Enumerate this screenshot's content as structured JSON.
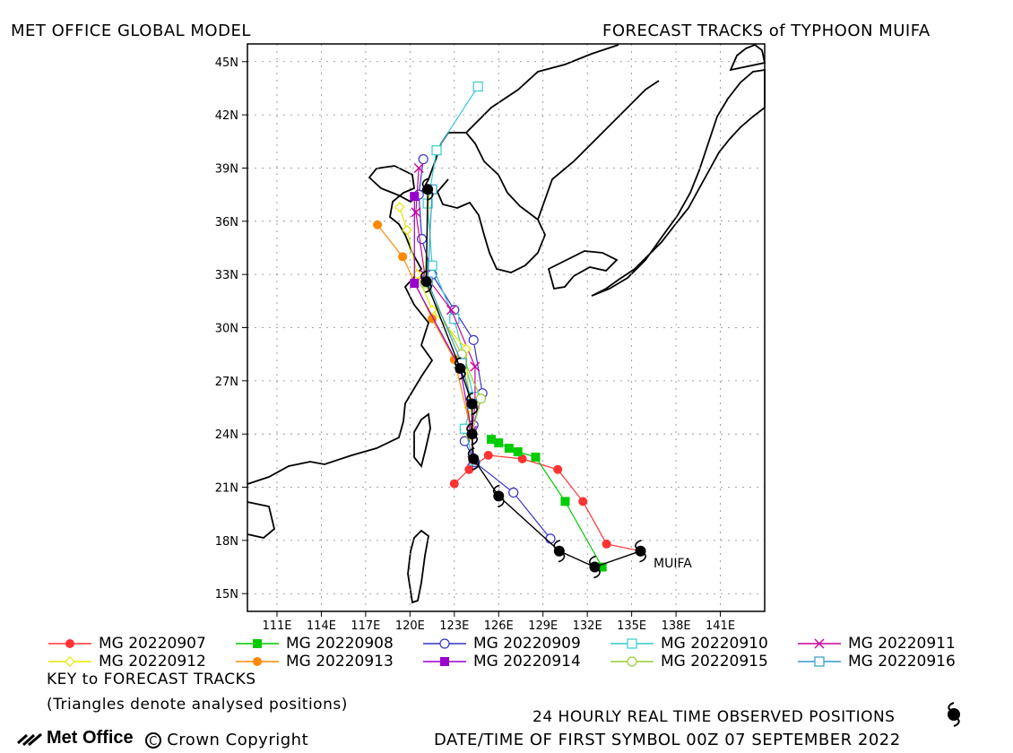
{
  "header": {
    "left_title": "MET OFFICE GLOBAL MODEL",
    "right_title": "FORECAST TRACKS of TYPHOON MUIFA"
  },
  "map": {
    "lat_labels": [
      "45N",
      "42N",
      "39N",
      "36N",
      "33N",
      "30N",
      "27N",
      "24N",
      "21N",
      "18N",
      "15N"
    ],
    "lon_labels": [
      "111E",
      "114E",
      "117E",
      "120E",
      "123E",
      "126E",
      "129E",
      "132E",
      "135E",
      "138E",
      "141E"
    ],
    "storm_label": "MUIFA",
    "land_color": "#ffffff",
    "coast_color": "#000000"
  },
  "legend": {
    "items": [
      {
        "label": "MG 20220907",
        "color": "#ff3333",
        "marker": "circle-filled"
      },
      {
        "label": "MG 20220908",
        "color": "#00cc00",
        "marker": "square-filled"
      },
      {
        "label": "MG 20220909",
        "color": "#3333cc",
        "marker": "circle-open"
      },
      {
        "label": "MG 20220910",
        "color": "#33cccc",
        "marker": "square-open"
      },
      {
        "label": "MG 20220911",
        "color": "#cc0099",
        "marker": "x"
      },
      {
        "label": "MG 20220912",
        "color": "#e6e600",
        "marker": "diamond-open"
      },
      {
        "label": "MG 20220913",
        "color": "#ff8800",
        "marker": "circle-filled"
      },
      {
        "label": "MG 20220914",
        "color": "#9900cc",
        "marker": "square-filled"
      },
      {
        "label": "MG 20220915",
        "color": "#99cc33",
        "marker": "circle-open"
      },
      {
        "label": "MG 20220916",
        "color": "#3399cc",
        "marker": "square-open"
      }
    ],
    "key_title": "KEY to FORECAST TRACKS",
    "triangles_note": "(Triangles denote analysed positions)"
  },
  "footer": {
    "logo_text": "Met Office",
    "copyright": "Crown Copyright",
    "observed_label": "24 HOURLY REAL TIME OBSERVED POSITIONS",
    "datetime_label": "DATE/TIME OF FIRST SYMBOL 00Z 07 SEPTEMBER 2022"
  },
  "chart_data": {
    "type": "map-tracks",
    "lon_range": [
      109,
      144
    ],
    "lat_range": [
      14,
      46
    ],
    "observed": {
      "name": "observed",
      "points": [
        [
          135.6,
          17.4
        ],
        [
          132.5,
          16.5
        ],
        [
          130.1,
          17.4
        ],
        [
          126.0,
          20.5
        ],
        [
          124.3,
          22.6
        ],
        [
          124.2,
          24.0
        ],
        [
          124.2,
          25.7
        ],
        [
          123.4,
          27.7
        ],
        [
          121.1,
          32.6
        ],
        [
          121.2,
          37.8
        ]
      ]
    },
    "tracks": [
      {
        "name": "MG 20220907",
        "color": "#ff3333",
        "marker": "circle-filled",
        "points": [
          [
            135.6,
            17.4
          ],
          [
            133.3,
            17.8
          ],
          [
            131.7,
            20.2
          ],
          [
            130.0,
            22.0
          ],
          [
            127.6,
            22.6
          ],
          [
            125.3,
            22.8
          ],
          [
            124.0,
            22.0
          ],
          [
            123.0,
            21.2
          ]
        ]
      },
      {
        "name": "MG 20220908",
        "color": "#00cc00",
        "marker": "square-filled",
        "points": [
          [
            133.0,
            16.5
          ],
          [
            130.5,
            20.2
          ],
          [
            128.5,
            22.7
          ],
          [
            127.3,
            23.0
          ],
          [
            126.7,
            23.2
          ],
          [
            126.0,
            23.5
          ],
          [
            125.5,
            23.7
          ]
        ]
      },
      {
        "name": "MG 20220909",
        "color": "#3333cc",
        "marker": "circle-open",
        "points": [
          [
            129.5,
            18.1
          ],
          [
            127.0,
            20.7
          ],
          [
            124.4,
            22.4
          ],
          [
            123.7,
            23.6
          ],
          [
            124.3,
            24.5
          ],
          [
            124.9,
            26.3
          ],
          [
            124.3,
            29.3
          ],
          [
            123.0,
            31.0
          ],
          [
            121.5,
            33.0
          ],
          [
            120.8,
            35.0
          ],
          [
            120.6,
            37.5
          ],
          [
            120.9,
            39.5
          ]
        ]
      },
      {
        "name": "MG 20220910",
        "color": "#33cccc",
        "marker": "square-open",
        "points": [
          [
            124.3,
            22.5
          ],
          [
            123.7,
            24.3
          ],
          [
            124.3,
            26.1
          ],
          [
            123.0,
            30.5
          ],
          [
            121.5,
            33.5
          ],
          [
            121.2,
            37.0
          ],
          [
            121.8,
            40.0
          ],
          [
            124.6,
            43.6
          ]
        ]
      },
      {
        "name": "MG 20220911",
        "color": "#cc0099",
        "marker": "x",
        "points": [
          [
            124.2,
            22.5
          ],
          [
            124.2,
            24.2
          ],
          [
            124.4,
            25.7
          ],
          [
            124.4,
            27.8
          ],
          [
            122.8,
            31.0
          ],
          [
            121.0,
            33.0
          ],
          [
            120.4,
            36.5
          ],
          [
            120.6,
            39.0
          ]
        ]
      },
      {
        "name": "MG 20220912",
        "color": "#e6e600",
        "marker": "diamond-open",
        "points": [
          [
            124.1,
            23.9
          ],
          [
            124.0,
            25.5
          ],
          [
            123.8,
            28.8
          ],
          [
            121.5,
            31.0
          ],
          [
            120.5,
            33.0
          ],
          [
            119.8,
            35.5
          ],
          [
            119.3,
            36.8
          ]
        ]
      },
      {
        "name": "MG 20220913",
        "color": "#ff8800",
        "marker": "circle-filled",
        "points": [
          [
            124.2,
            24.0
          ],
          [
            123.0,
            28.2
          ],
          [
            121.5,
            30.5
          ],
          [
            119.5,
            34.0
          ],
          [
            117.8,
            35.8
          ]
        ]
      },
      {
        "name": "MG 20220914",
        "color": "#9900cc",
        "marker": "square-filled",
        "points": [
          [
            124.2,
            24.0
          ],
          [
            123.4,
            27.7
          ],
          [
            120.3,
            32.5
          ],
          [
            120.3,
            37.4
          ]
        ]
      },
      {
        "name": "MG 20220915",
        "color": "#99cc33",
        "marker": "circle-open",
        "points": [
          [
            124.2,
            24.0
          ],
          [
            124.8,
            26.0
          ],
          [
            123.5,
            28.5
          ],
          [
            121.0,
            32.5
          ],
          [
            121.3,
            37.8
          ]
        ]
      },
      {
        "name": "MG 20220916",
        "color": "#3399cc",
        "marker": "square-open",
        "points": [
          [
            124.2,
            25.7
          ],
          [
            123.5,
            28.0
          ],
          [
            121.2,
            32.6
          ],
          [
            121.5,
            37.8
          ]
        ]
      }
    ]
  }
}
